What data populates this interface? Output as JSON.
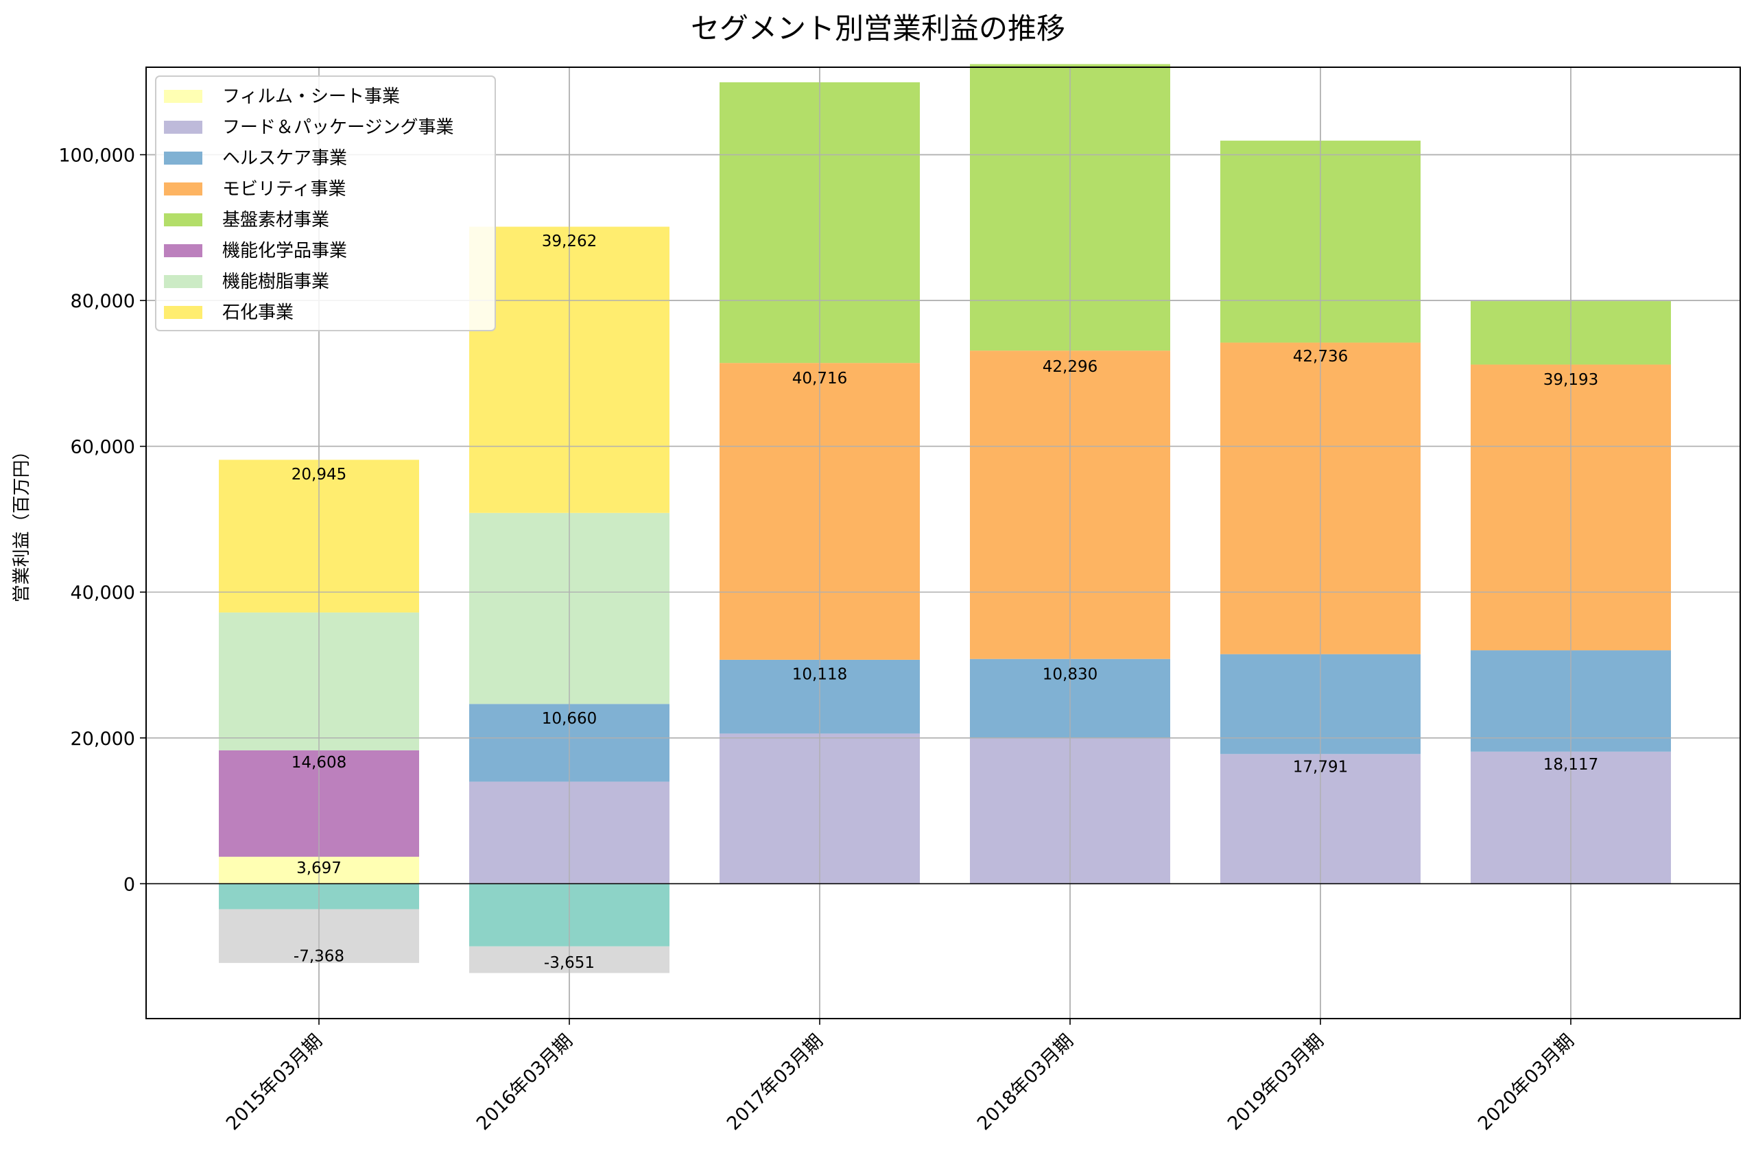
{
  "chart_data": {
    "type": "bar",
    "stacked": true,
    "title": "セグメント別営業利益の推移",
    "xlabel": "",
    "ylabel": "営業利益（百万円）",
    "ylim": [
      -18500,
      112000
    ],
    "yticks": [
      0,
      20000,
      40000,
      60000,
      80000,
      100000
    ],
    "ytick_labels": [
      "0",
      "20,000",
      "40,000",
      "60,000",
      "80,000",
      "100,000"
    ],
    "grid": true,
    "legend_position": "top-left",
    "categories": [
      "2015年03月期",
      "2016年03月期",
      "2017年03月期",
      "2018年03月期",
      "2019年03月期",
      "2020年03月期"
    ],
    "series": [
      {
        "name": "フィルム・シート事業",
        "color": "#ffffb3",
        "values": [
          3697,
          null,
          null,
          null,
          null,
          null
        ]
      },
      {
        "name": "フード＆パッケージング事業",
        "color": "#bebada",
        "values": [
          null,
          14000,
          20600,
          20000,
          17791,
          18117
        ]
      },
      {
        "name": "ヘルスケア事業",
        "color": "#80b1d3",
        "values": [
          null,
          10660,
          10118,
          10830,
          13700,
          13900
        ]
      },
      {
        "name": "モビリティ事業",
        "color": "#fdb462",
        "values": [
          null,
          null,
          40716,
          42296,
          42736,
          39193
        ]
      },
      {
        "name": "基盤素材事業",
        "color": "#b3de69",
        "values": [
          null,
          null,
          38500,
          39300,
          27700,
          8700
        ]
      },
      {
        "name": "機能化学品事業",
        "color": "#bc80bd",
        "values": [
          14608,
          null,
          null,
          null,
          null,
          null
        ]
      },
      {
        "name": "機能樹脂事業",
        "color": "#ccebc5",
        "values": [
          18900,
          26200,
          null,
          null,
          null,
          null
        ]
      },
      {
        "name": "石化事業",
        "color": "#ffed6f",
        "values": [
          20945,
          39262,
          null,
          null,
          null,
          null
        ]
      }
    ],
    "unlegended_series": [
      {
        "color": "#8dd3c7",
        "values": [
          -3500,
          -8600,
          null,
          null,
          null,
          null
        ]
      },
      {
        "color": "#d9d9d9",
        "values": [
          -7368,
          -3651,
          null,
          null,
          null,
          null
        ]
      }
    ],
    "data_labels": [
      {
        "category": 0,
        "text": "20,945",
        "y": 56200
      },
      {
        "category": 0,
        "text": "14,608",
        "y": 16700
      },
      {
        "category": 0,
        "text": "3,697",
        "y": 2200
      },
      {
        "category": 0,
        "text": "-7,368",
        "y": -9900
      },
      {
        "category": 1,
        "text": "39,262",
        "y": 88200
      },
      {
        "category": 1,
        "text": "10,660",
        "y": 22700
      },
      {
        "category": 1,
        "text": "-3,651",
        "y": -10800
      },
      {
        "category": 2,
        "text": "40,716",
        "y": 69400
      },
      {
        "category": 2,
        "text": "10,118",
        "y": 28800
      },
      {
        "category": 3,
        "text": "42,296",
        "y": 71000
      },
      {
        "category": 3,
        "text": "10,830",
        "y": 28800
      },
      {
        "category": 4,
        "text": "42,736",
        "y": 72400
      },
      {
        "category": 4,
        "text": "17,791",
        "y": 16100
      },
      {
        "category": 5,
        "text": "39,193",
        "y": 69200
      },
      {
        "category": 5,
        "text": "18,117",
        "y": 16400
      }
    ]
  }
}
